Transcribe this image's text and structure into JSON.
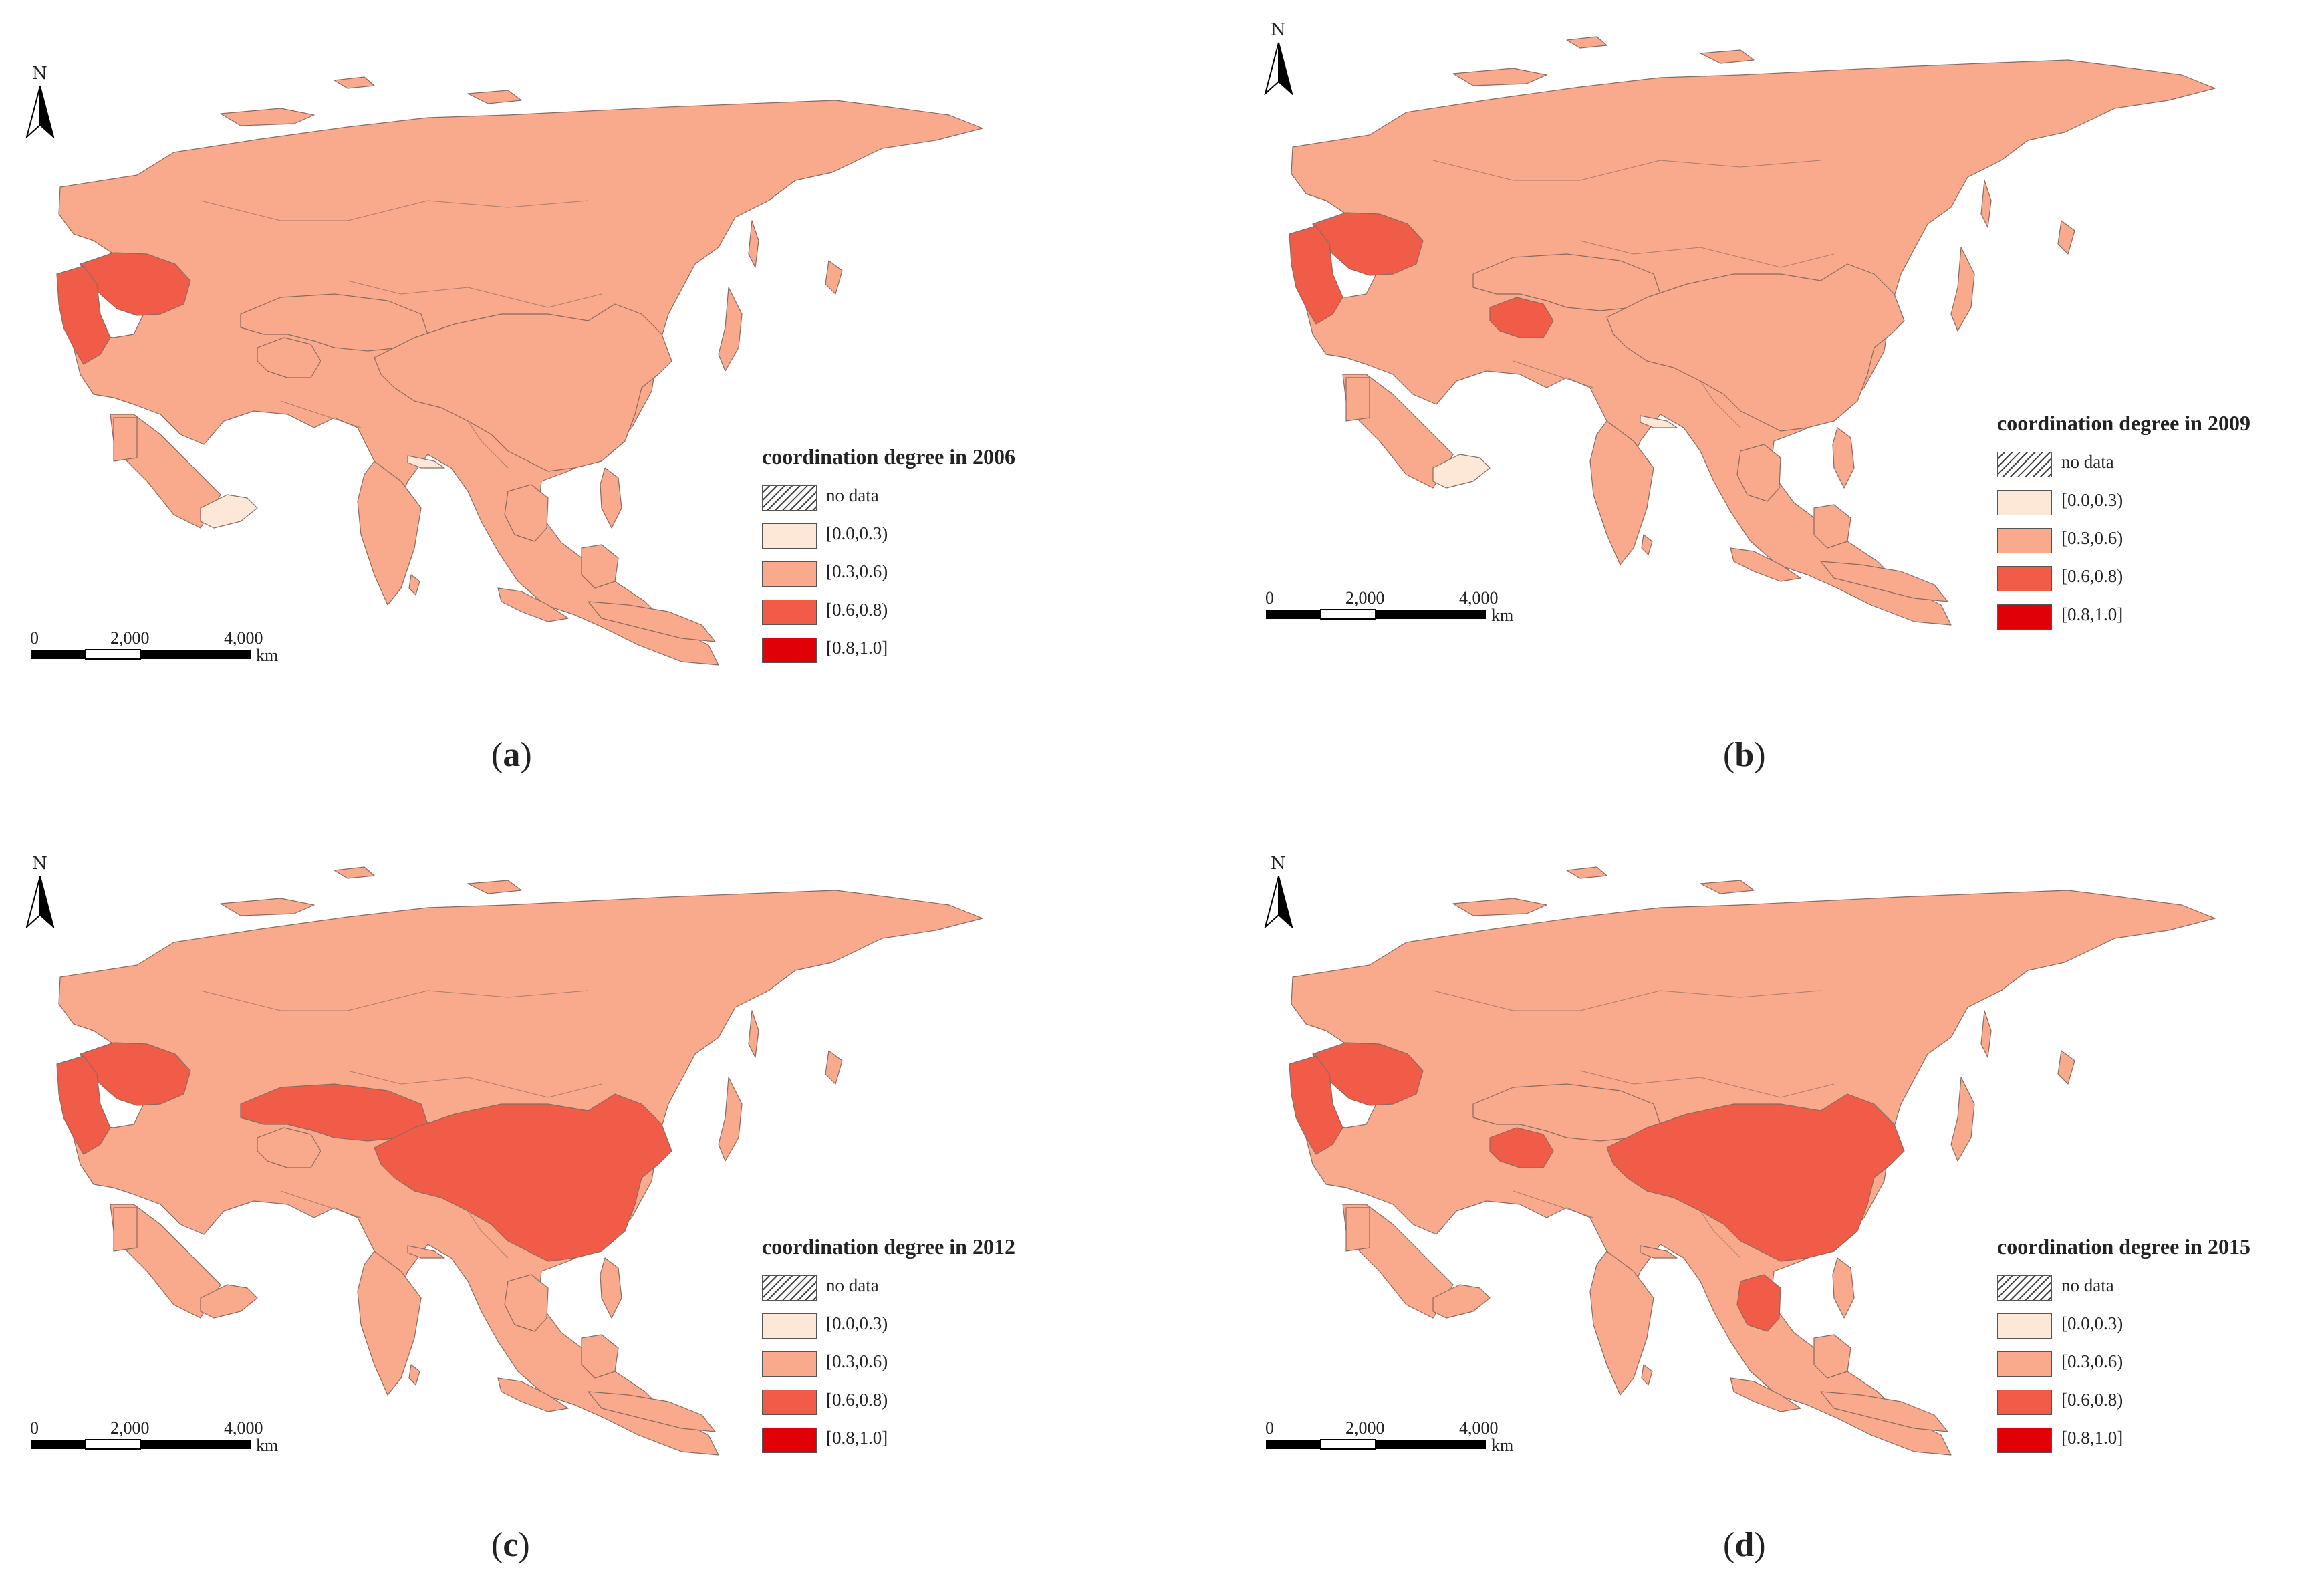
{
  "classes": [
    {
      "label": "no data",
      "color": "hatch"
    },
    {
      "label": "[0.0,0.3)",
      "color": "#fde8d8"
    },
    {
      "label": "[0.3,0.6)",
      "color": "#f9a98c"
    },
    {
      "label": "[0.6,0.8)",
      "color": "#f05c47"
    },
    {
      "label": "[0.8,1.0]",
      "color": "#e00008"
    }
  ],
  "colors": {
    "coastline": "#7a7a7a",
    "border": "#8a6a60",
    "hatch": "#444444"
  },
  "north_label": "N",
  "scale_bar": {
    "ticks": [
      "0",
      "2,000",
      "4,000"
    ],
    "unit": "km"
  },
  "caption_paren_open": "(",
  "caption_paren_close": ")",
  "panels": [
    {
      "legend_title": "coordination degree in 2006",
      "caption_letter": "a",
      "highlights": {
        "europe_east": 3,
        "europe_west": 3,
        "turkmenistan": 2,
        "kazakhstan": 2,
        "china": 2,
        "indochina": 2,
        "yemen": 1,
        "nepal": 1
      }
    },
    {
      "legend_title": "coordination degree in 2009",
      "caption_letter": "b",
      "highlights": {
        "europe_east": 3,
        "europe_west": 3,
        "turkmenistan": 3,
        "kazakhstan": 2,
        "china": 2,
        "indochina": 2,
        "yemen": 1,
        "nepal": 1
      }
    },
    {
      "legend_title": "coordination degree in 2012",
      "caption_letter": "c",
      "highlights": {
        "europe_east": 3,
        "europe_west": 3,
        "turkmenistan": 2,
        "kazakhstan": 3,
        "china": 3,
        "indochina": 2,
        "yemen": 2,
        "nepal": 2
      }
    },
    {
      "legend_title": "coordination degree in 2015",
      "caption_letter": "d",
      "highlights": {
        "europe_east": 3,
        "europe_west": 3,
        "turkmenistan": 3,
        "kazakhstan": 2,
        "china": 3,
        "indochina": 3,
        "yemen": 2,
        "nepal": 2
      }
    }
  ]
}
